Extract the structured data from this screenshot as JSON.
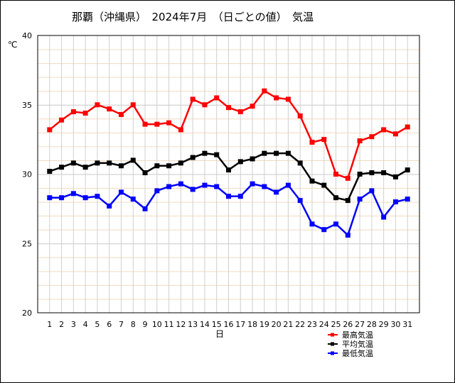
{
  "chart_data": {
    "type": "line",
    "title": "那覇（沖縄県）　2024年7月　（日ごとの値）　気温",
    "xlabel": "日",
    "ylabel": "℃",
    "ylim": [
      20,
      40
    ],
    "yticks": [
      20,
      25,
      30,
      35,
      40
    ],
    "grid": true,
    "legend_position": "bottom-right",
    "x": [
      1,
      2,
      3,
      4,
      5,
      6,
      7,
      8,
      9,
      10,
      11,
      12,
      13,
      14,
      15,
      16,
      17,
      18,
      19,
      20,
      21,
      22,
      23,
      24,
      25,
      26,
      27,
      28,
      29,
      30,
      31
    ],
    "series": [
      {
        "name": "最高気温",
        "color": "#ff0000",
        "values": [
          33.2,
          33.9,
          34.5,
          34.4,
          35.0,
          34.7,
          34.3,
          35.0,
          33.6,
          33.6,
          33.7,
          33.2,
          35.4,
          35.0,
          35.5,
          34.8,
          34.5,
          34.9,
          36.0,
          35.5,
          35.4,
          34.2,
          32.3,
          32.5,
          30.0,
          29.7,
          32.4,
          32.7,
          33.2,
          32.9,
          33.4
        ]
      },
      {
        "name": "平均気温",
        "color": "#000000",
        "values": [
          30.2,
          30.5,
          30.8,
          30.5,
          30.8,
          30.8,
          30.6,
          31.0,
          30.1,
          30.6,
          30.6,
          30.8,
          31.2,
          31.5,
          31.4,
          30.3,
          30.9,
          31.1,
          31.5,
          31.5,
          31.5,
          30.8,
          29.5,
          29.2,
          28.3,
          28.1,
          30.0,
          30.1,
          30.1,
          29.8,
          30.3
        ]
      },
      {
        "name": "最低気温",
        "color": "#0000ff",
        "values": [
          28.3,
          28.3,
          28.6,
          28.3,
          28.4,
          27.7,
          28.7,
          28.2,
          27.5,
          28.8,
          29.1,
          29.3,
          28.9,
          29.2,
          29.1,
          28.4,
          28.4,
          29.3,
          29.1,
          28.7,
          29.2,
          28.1,
          26.4,
          26.0,
          26.4,
          25.6,
          28.2,
          28.8,
          26.9,
          28.0,
          28.2
        ]
      }
    ]
  }
}
